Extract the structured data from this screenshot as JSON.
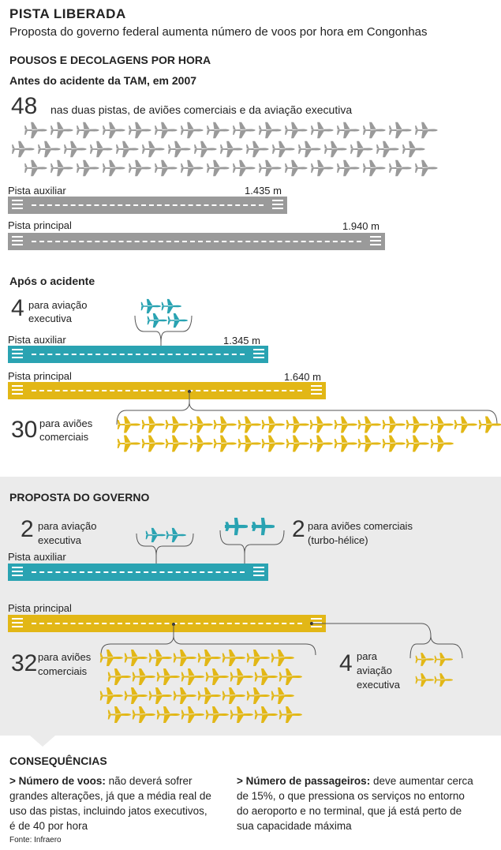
{
  "header": {
    "title": "PISTA LIBERADA",
    "subtitle": "Proposta do governo federal aumenta número de voos por hora em Congonhas"
  },
  "section_heading": "POUSOS E DECOLAGENS POR HORA",
  "before": {
    "heading": "Antes do acidente da TAM, em 2007",
    "count": "48",
    "count_label": "nas duas pistas, de aviões comerciais e da aviação executiva",
    "aux_label": "Pista auxiliar",
    "aux_length": "1.435 m",
    "main_label": "Pista principal",
    "main_length": "1.940 m",
    "plane_color": "#9a9a9a"
  },
  "after": {
    "heading": "Após o acidente",
    "exec_count": "4",
    "exec_label_1": "para aviação",
    "exec_label_2": "executiva",
    "aux_label": "Pista auxiliar",
    "aux_length": "1.345 m",
    "main_label": "Pista principal",
    "main_length": "1.640 m",
    "comm_count": "30",
    "comm_label_1": "para aviões",
    "comm_label_2": "comerciais"
  },
  "proposal": {
    "heading": "PROPOSTA DO GOVERNO",
    "exec_count": "2",
    "exec_label_1": "para aviação",
    "exec_label_2": "executiva",
    "turbo_count": "2",
    "turbo_label_1": "para aviões comerciais",
    "turbo_label_2": "(turbo-hélice)",
    "aux_label": "Pista auxiliar",
    "main_label": "Pista principal",
    "comm_count": "32",
    "comm_label_1": "para aviões",
    "comm_label_2": "comerciais",
    "exec2_count": "4",
    "exec2_label_1": "para",
    "exec2_label_2": "aviação",
    "exec2_label_3": "executiva"
  },
  "consequences": {
    "heading": "CONSEQUÊNCIAS",
    "left_bold": "> Número de voos:",
    "left_text_1": " não deverá sofrer",
    "left_text_2": "grandes alterações, já que a média real de",
    "left_text_3": "uso das pistas, incluindo jatos executivos,",
    "left_text_4": "é de 40 por hora",
    "right_bold": "> Número de passageiros:",
    "right_text_1": " deve aumentar cerca",
    "right_text_2": "de 15%, o que pressiona os serviços no entorno",
    "right_text_3": "do aeroporto e no terminal, que já está perto de",
    "right_text_4": "sua capacidade máxima"
  },
  "source": "Fonte: Infraero",
  "colors": {
    "gray": "#9a9a9a",
    "teal": "#2aa3b2",
    "yellow": "#e2b716",
    "panel": "#ebebeb"
  }
}
